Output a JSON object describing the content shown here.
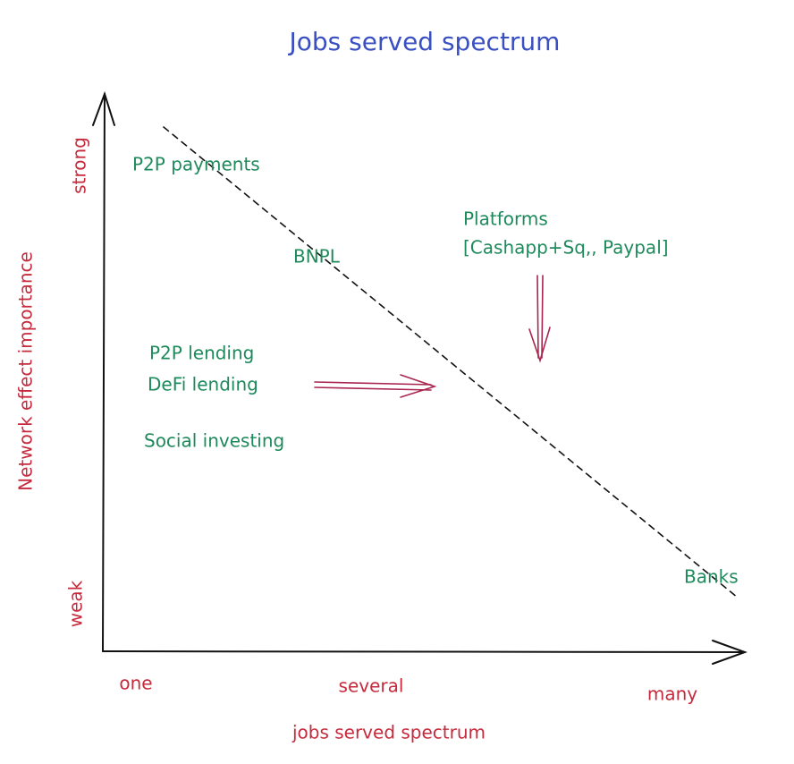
{
  "title": "Jobs served spectrum",
  "y_axis": {
    "label": "Network effect importance",
    "high": "strong",
    "low": "weak"
  },
  "x_axis": {
    "label": "jobs served spectrum",
    "ticks": [
      "one",
      "several",
      "many"
    ]
  },
  "items": [
    "P2P payments",
    "BNPL",
    "Platforms",
    "[Cashapp+Sq,, Paypal]",
    "P2P lending",
    "DeFi lending",
    "Social investing",
    "Banks"
  ]
}
